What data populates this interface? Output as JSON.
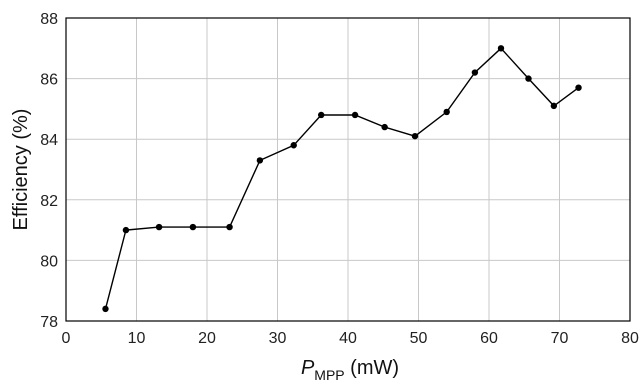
{
  "chart_data": {
    "type": "line",
    "title": "",
    "xlabel": "P",
    "xlabel_subscript": "MPP",
    "xlabel_unit": " (mW)",
    "ylabel": "Efficiency (%)",
    "xlim": [
      0,
      80
    ],
    "ylim": [
      78,
      88
    ],
    "x_ticks": [
      "0",
      "10",
      "20",
      "30",
      "40",
      "50",
      "60",
      "70",
      "80"
    ],
    "y_ticks": [
      "78",
      "80",
      "82",
      "84",
      "86",
      "88"
    ],
    "grid": true,
    "legend": "none",
    "colors": {
      "line": "#000000",
      "marker": "#000000",
      "grid": "#c8c8c8",
      "frame": "#000000"
    },
    "series": [
      {
        "x": [
          5.6,
          8.5,
          13.2,
          18.0,
          23.2,
          27.5,
          32.3,
          36.2,
          41.0,
          45.2,
          49.5,
          54.0,
          58.0,
          61.7,
          65.6,
          69.2,
          72.7
        ],
        "y": [
          78.4,
          81.0,
          81.1,
          81.1,
          81.1,
          83.3,
          83.8,
          84.8,
          84.8,
          84.4,
          84.1,
          84.9,
          86.2,
          87.0,
          86.0,
          85.1,
          85.7
        ]
      }
    ]
  }
}
